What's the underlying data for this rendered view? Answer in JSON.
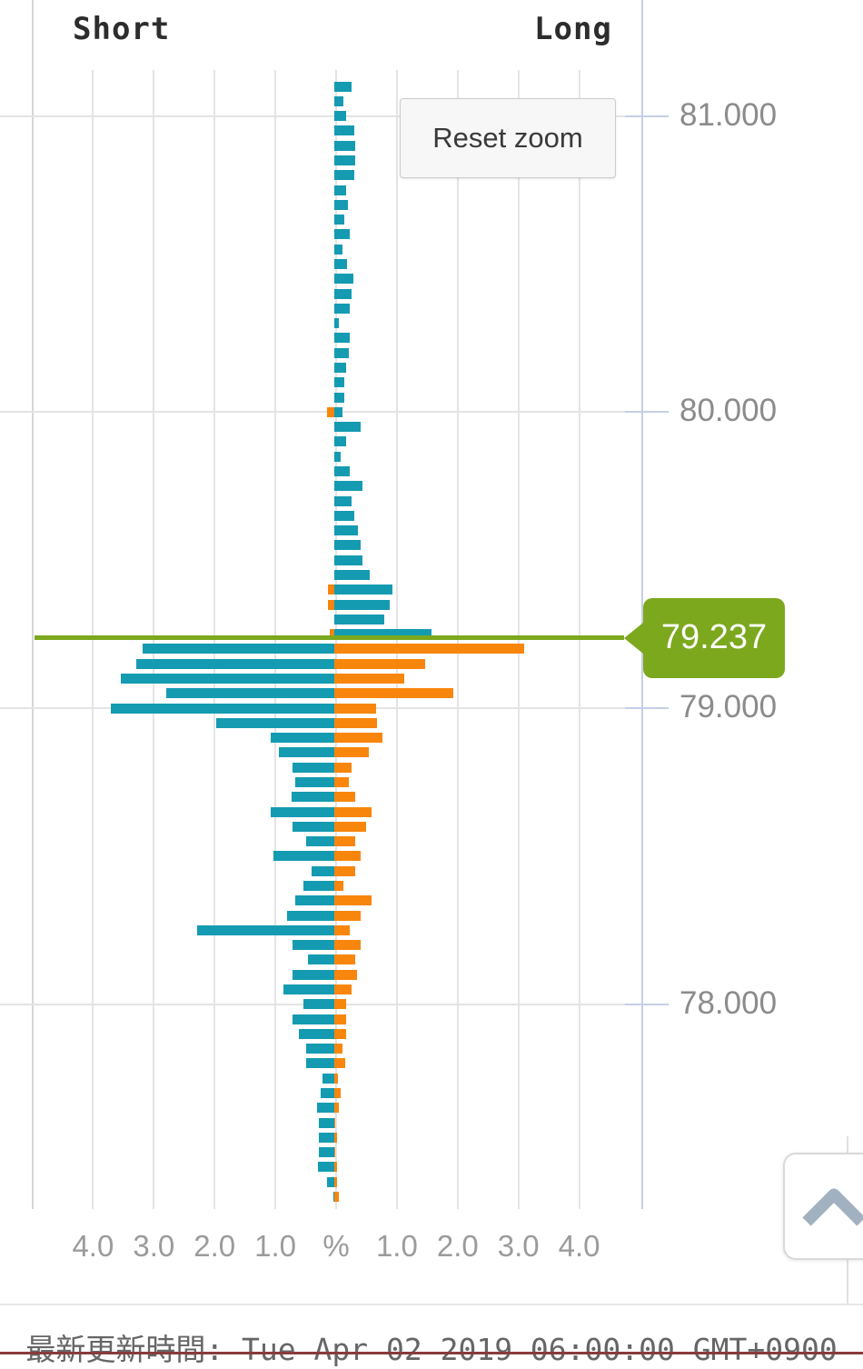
{
  "chart": {
    "title_short": "Short",
    "title_long": "Long",
    "reset_zoom_label": "Reset zoom",
    "current_price_label": "79.237",
    "x_axis_labels": [
      "4.0",
      "3.0",
      "2.0",
      "1.0",
      "%",
      "1.0",
      "2.0",
      "3.0",
      "4.0"
    ],
    "y_axis_labels": [
      "81.000",
      "80.000",
      "79.000",
      "78.000"
    ]
  },
  "chart_data": {
    "type": "bar",
    "orientation": "horizontal-butterfly",
    "title": "",
    "xlabel": "%",
    "unit": "percent of open positions",
    "left_side_label": "Short",
    "right_side_label": "Long",
    "current_price": 79.237,
    "price_step": 0.05,
    "x_max_percent": 5.0,
    "x_tick_interval": 1.0,
    "y_axis_tick_labels": [
      "81.000",
      "80.000",
      "79.000",
      "78.000"
    ],
    "grid": true,
    "colors": {
      "losing_bar": "#149bb1",
      "winning_bar": "#f8860d",
      "current_price": "#7ca81e"
    },
    "rows": [
      {
        "price": 81.1,
        "short": 0.0,
        "long": 0.28
      },
      {
        "price": 81.05,
        "short": 0.0,
        "long": 0.15
      },
      {
        "price": 81.0,
        "short": 0.0,
        "long": 0.19
      },
      {
        "price": 80.95,
        "short": 0.0,
        "long": 0.33
      },
      {
        "price": 80.9,
        "short": 0.0,
        "long": 0.34
      },
      {
        "price": 80.85,
        "short": 0.0,
        "long": 0.34
      },
      {
        "price": 80.8,
        "short": 0.0,
        "long": 0.33
      },
      {
        "price": 80.75,
        "short": 0.0,
        "long": 0.19
      },
      {
        "price": 80.7,
        "short": 0.0,
        "long": 0.23
      },
      {
        "price": 80.65,
        "short": 0.0,
        "long": 0.16
      },
      {
        "price": 80.6,
        "short": 0.0,
        "long": 0.25
      },
      {
        "price": 80.55,
        "short": 0.0,
        "long": 0.13
      },
      {
        "price": 80.5,
        "short": 0.0,
        "long": 0.21
      },
      {
        "price": 80.45,
        "short": 0.0,
        "long": 0.32
      },
      {
        "price": 80.4,
        "short": 0.0,
        "long": 0.29
      },
      {
        "price": 80.35,
        "short": 0.0,
        "long": 0.26
      },
      {
        "price": 80.3,
        "short": 0.0,
        "long": 0.07
      },
      {
        "price": 80.25,
        "short": 0.0,
        "long": 0.26
      },
      {
        "price": 80.2,
        "short": 0.0,
        "long": 0.24
      },
      {
        "price": 80.15,
        "short": 0.0,
        "long": 0.19
      },
      {
        "price": 80.1,
        "short": 0.0,
        "long": 0.16
      },
      {
        "price": 80.05,
        "short": 0.0,
        "long": 0.16
      },
      {
        "price": 80.0,
        "short": 0.12,
        "long": 0.14
      },
      {
        "price": 79.95,
        "short": 0.0,
        "long": 0.43
      },
      {
        "price": 79.9,
        "short": 0.0,
        "long": 0.2
      },
      {
        "price": 79.85,
        "short": 0.0,
        "long": 0.1
      },
      {
        "price": 79.8,
        "short": 0.0,
        "long": 0.25
      },
      {
        "price": 79.75,
        "short": 0.0,
        "long": 0.46
      },
      {
        "price": 79.7,
        "short": 0.0,
        "long": 0.29
      },
      {
        "price": 79.65,
        "short": 0.0,
        "long": 0.33
      },
      {
        "price": 79.6,
        "short": 0.0,
        "long": 0.39
      },
      {
        "price": 79.55,
        "short": 0.0,
        "long": 0.43
      },
      {
        "price": 79.5,
        "short": 0.0,
        "long": 0.46
      },
      {
        "price": 79.45,
        "short": 0.0,
        "long": 0.59
      },
      {
        "price": 79.4,
        "short": 0.1,
        "long": 0.96
      },
      {
        "price": 79.35,
        "short": 0.1,
        "long": 0.91
      },
      {
        "price": 79.3,
        "short": 0.0,
        "long": 0.82
      },
      {
        "price": 79.25,
        "short": 0.07,
        "long": 1.6
      },
      {
        "price": 79.2,
        "short": 3.16,
        "long": 3.12
      },
      {
        "price": 79.15,
        "short": 3.26,
        "long": 1.5
      },
      {
        "price": 79.1,
        "short": 3.52,
        "long": 1.15
      },
      {
        "price": 79.05,
        "short": 2.76,
        "long": 1.96
      },
      {
        "price": 79.0,
        "short": 3.68,
        "long": 0.69
      },
      {
        "price": 78.95,
        "short": 1.95,
        "long": 0.71
      },
      {
        "price": 78.9,
        "short": 1.04,
        "long": 0.79
      },
      {
        "price": 78.85,
        "short": 0.91,
        "long": 0.57
      },
      {
        "price": 78.8,
        "short": 0.69,
        "long": 0.29
      },
      {
        "price": 78.75,
        "short": 0.64,
        "long": 0.24
      },
      {
        "price": 78.7,
        "short": 0.71,
        "long": 0.34
      },
      {
        "price": 78.65,
        "short": 1.05,
        "long": 0.61
      },
      {
        "price": 78.6,
        "short": 0.69,
        "long": 0.52
      },
      {
        "price": 78.55,
        "short": 0.46,
        "long": 0.34
      },
      {
        "price": 78.5,
        "short": 1.0,
        "long": 0.43
      },
      {
        "price": 78.45,
        "short": 0.38,
        "long": 0.34
      },
      {
        "price": 78.4,
        "short": 0.51,
        "long": 0.15
      },
      {
        "price": 78.35,
        "short": 0.64,
        "long": 0.61
      },
      {
        "price": 78.3,
        "short": 0.78,
        "long": 0.43
      },
      {
        "price": 78.25,
        "short": 2.25,
        "long": 0.25
      },
      {
        "price": 78.2,
        "short": 0.69,
        "long": 0.44
      },
      {
        "price": 78.15,
        "short": 0.43,
        "long": 0.35
      },
      {
        "price": 78.1,
        "short": 0.69,
        "long": 0.38
      },
      {
        "price": 78.05,
        "short": 0.83,
        "long": 0.29
      },
      {
        "price": 78.0,
        "short": 0.51,
        "long": 0.19
      },
      {
        "price": 77.95,
        "short": 0.69,
        "long": 0.19
      },
      {
        "price": 77.9,
        "short": 0.59,
        "long": 0.19
      },
      {
        "price": 77.85,
        "short": 0.46,
        "long": 0.13
      },
      {
        "price": 77.8,
        "short": 0.46,
        "long": 0.18
      },
      {
        "price": 77.75,
        "short": 0.19,
        "long": 0.06
      },
      {
        "price": 77.7,
        "short": 0.23,
        "long": 0.11
      },
      {
        "price": 77.65,
        "short": 0.29,
        "long": 0.08
      },
      {
        "price": 77.6,
        "short": 0.26,
        "long": 0.02
      },
      {
        "price": 77.55,
        "short": 0.26,
        "long": 0.05
      },
      {
        "price": 77.5,
        "short": 0.26,
        "long": 0.02
      },
      {
        "price": 77.45,
        "short": 0.27,
        "long": 0.05
      },
      {
        "price": 77.4,
        "short": 0.12,
        "long": 0.05
      },
      {
        "price": 77.35,
        "short": 0.02,
        "long": 0.08
      }
    ]
  },
  "footer": {
    "last_update": "最新更新時間: Tue Apr 02 2019 06:00:00 GMT+0900"
  },
  "scroll_top_button": {
    "icon": "chevron-up-icon"
  }
}
